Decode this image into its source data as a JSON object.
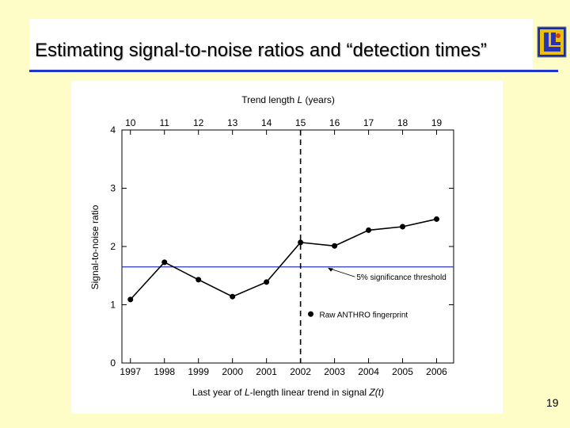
{
  "slide": {
    "title": "Estimating signal-to-noise ratios and “detection times”",
    "page_number": "19",
    "logo_icon": "llnl-logo-icon",
    "colors": {
      "background": "#fefdc8",
      "title_rule": "#1d36c6",
      "threshold_line": "#2b35b8"
    }
  },
  "chart_data": {
    "type": "line",
    "title_top_prefix": "Trend length ",
    "title_top_italic": "L",
    "title_top_suffix": " (years)",
    "xlabel_prefix": "Last year of ",
    "xlabel_italic1": "L",
    "xlabel_middle": "-length linear trend in signal ",
    "xlabel_italic2": "Z(t)",
    "ylabel": "Signal-to-noise ratio",
    "x": [
      1997,
      1998,
      1999,
      2000,
      2001,
      2002,
      2003,
      2004,
      2005,
      2006
    ],
    "top_axis_labels": [
      "10",
      "11",
      "12",
      "13",
      "14",
      "15",
      "16",
      "17",
      "18",
      "19"
    ],
    "y_ticks": [
      "0",
      "1",
      "2",
      "3",
      "4"
    ],
    "ylim": [
      0,
      4
    ],
    "xlim": [
      1996.75,
      2006.5
    ],
    "series": [
      {
        "name": "Raw ANTHRO fingerprint",
        "values": [
          1.09,
          1.73,
          1.43,
          1.14,
          1.39,
          2.07,
          2.01,
          2.28,
          2.34,
          2.47
        ]
      }
    ],
    "threshold": {
      "value": 1.65,
      "label": "5% significance threshold"
    },
    "vertical_marker": {
      "x": 2002
    },
    "legend_label": "Raw ANTHRO fingerprint",
    "grid": false
  }
}
